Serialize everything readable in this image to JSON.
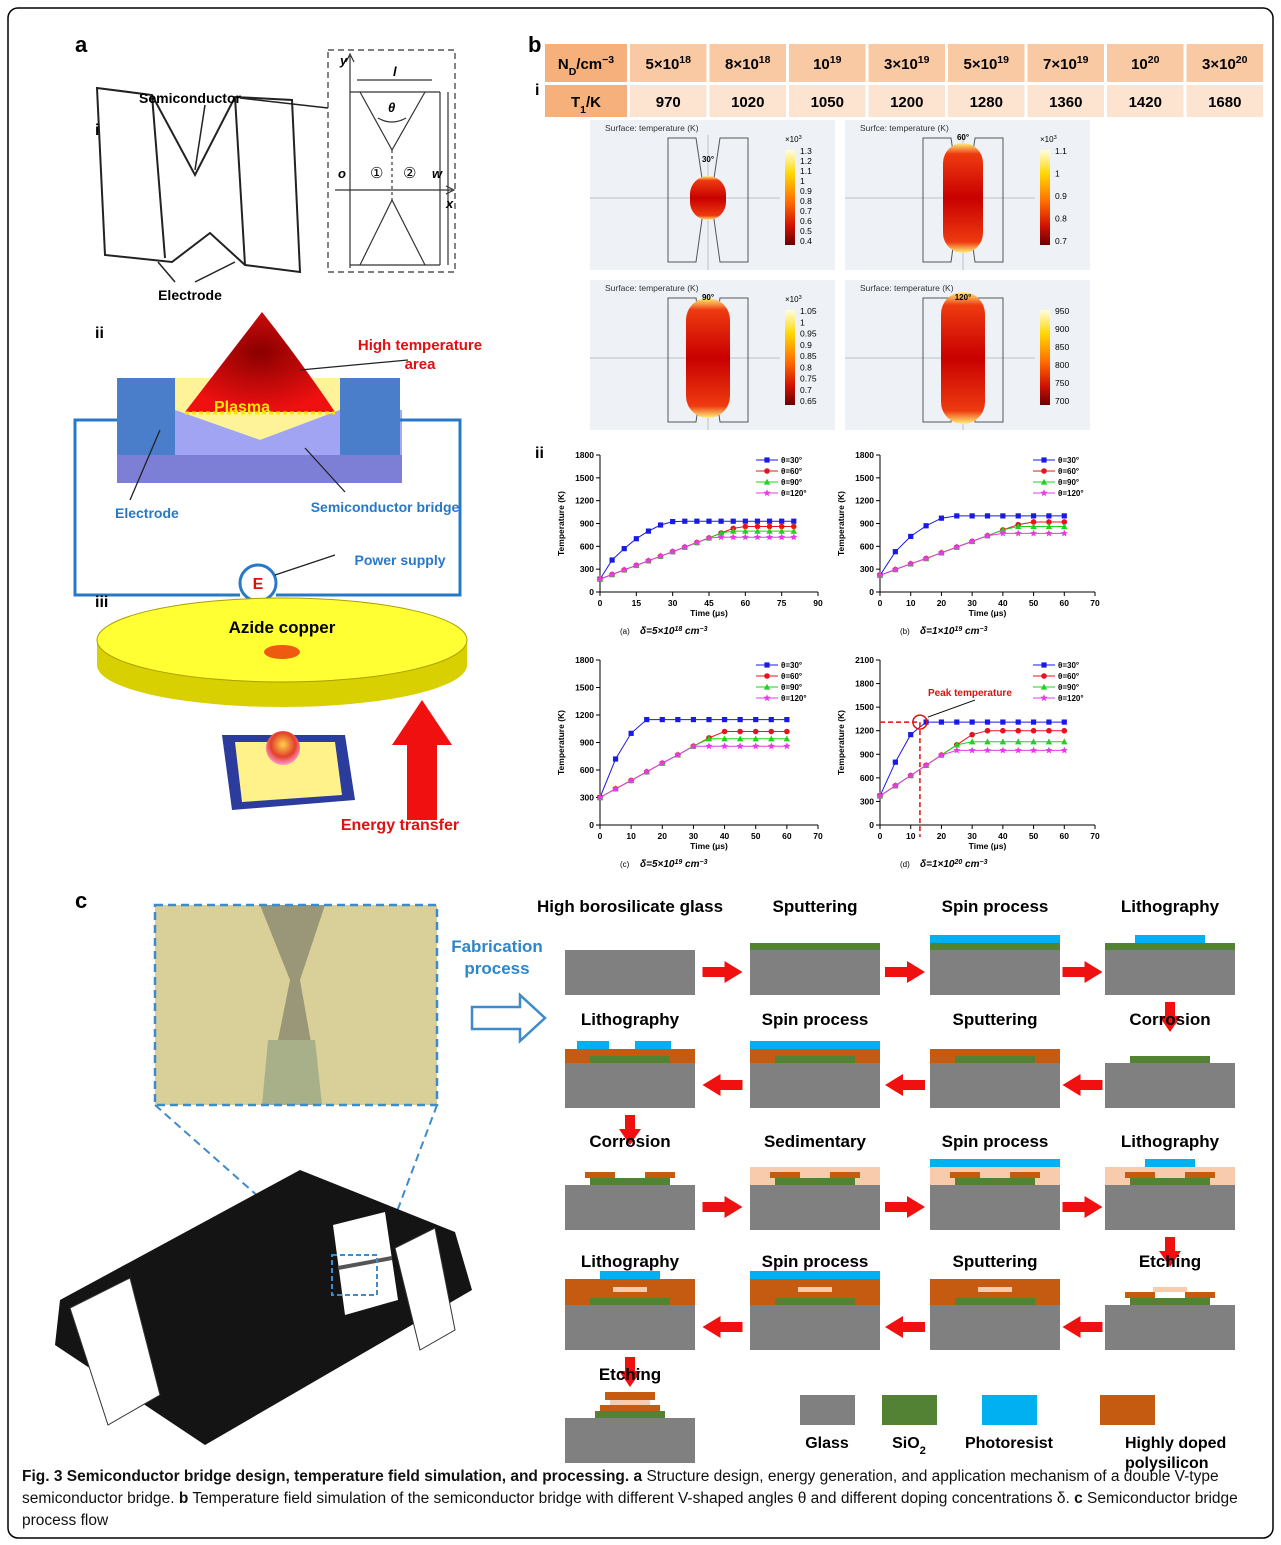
{
  "panel_a": {
    "label": "a",
    "i": {
      "label": "i",
      "semiconductor": "Semiconductor",
      "electrode": "Electrode",
      "axis_y": "y",
      "length": "l",
      "angle": "θ",
      "origin": "o",
      "region1": "①",
      "region2": "②",
      "width": "w",
      "axis_x": "x"
    },
    "ii": {
      "label": "ii",
      "high_temperature": [
        "High temperature",
        "area"
      ],
      "plasma": "Plasma",
      "electrode": "Electrode",
      "bridge": "Semiconductor bridge",
      "source": "E",
      "power": "Power supply"
    },
    "iii": {
      "label": "iii",
      "azide": "Azide copper",
      "energy": "Energy transfer"
    }
  },
  "panel_b": {
    "label": "b",
    "i_label": "i",
    "ii_label": "ii",
    "table": {
      "rows": [
        [
          [
            "N",
            {
              "sub": "D"
            },
            "/cm",
            {
              "sup": "−3"
            }
          ],
          [
            "5×10",
            {
              "sup": "18"
            }
          ],
          [
            "8×10",
            {
              "sup": "18"
            }
          ],
          [
            "10",
            {
              "sup": "19"
            }
          ],
          [
            "3×10",
            {
              "sup": "19"
            }
          ],
          [
            "5×10",
            {
              "sup": "19"
            }
          ],
          [
            "7×10",
            {
              "sup": "19"
            }
          ],
          [
            "10",
            {
              "sup": "20"
            }
          ],
          [
            "3×10",
            {
              "sup": "20"
            }
          ]
        ],
        [
          [
            "T",
            {
              "sub": "1"
            },
            "/K"
          ],
          "970",
          "1020",
          "1050",
          "1200",
          "1280",
          "1360",
          "1420",
          "1680"
        ]
      ]
    },
    "simulations": [
      {
        "title": "Surface: temperature (K)",
        "angle": "30°",
        "scale": [
          "×10",
          {
            "sup": "3"
          }
        ],
        "ticks": [
          "1.3",
          "1.2",
          "1.1",
          "1",
          "0.9",
          "0.8",
          "0.7",
          "0.6",
          "0.5",
          "0.4"
        ]
      },
      {
        "title": "Surfce: temperature (K)",
        "angle": "60°",
        "scale": [
          "×10",
          {
            "sup": "3"
          }
        ],
        "ticks": [
          "1.1",
          "1",
          "0.9",
          "0.8",
          "0.7"
        ]
      },
      {
        "title": "Surface: temperature (K)",
        "angle": "90°",
        "scale": [
          "×10",
          {
            "sup": "3"
          }
        ],
        "ticks": [
          "1.05",
          "1",
          "0.95",
          "0.9",
          "0.85",
          "0.8",
          "0.75",
          "0.7",
          "0.65"
        ]
      },
      {
        "title": "Surface: temperature (K)",
        "angle": "120°",
        "ticks": [
          "950",
          "900",
          "850",
          "800",
          "750",
          "700"
        ]
      }
    ]
  },
  "chart_data": [
    {
      "type": "line",
      "x": [
        0,
        5,
        10,
        15,
        20,
        25,
        30,
        35,
        40,
        45,
        50,
        55,
        60,
        65,
        70,
        75,
        80
      ],
      "series": [
        {
          "name": "θ=30°",
          "color": "#1a1ae6",
          "marker": "square",
          "values": [
            170,
            420,
            570,
            700,
            800,
            880,
            925,
            930,
            930,
            930,
            930,
            930,
            930,
            930,
            930,
            930,
            930
          ]
        },
        {
          "name": "θ=60°",
          "color": "#e6141e",
          "marker": "circle",
          "values": [
            170,
            230,
            290,
            350,
            410,
            470,
            530,
            590,
            650,
            710,
            775,
            835,
            860,
            860,
            860,
            860,
            860
          ]
        },
        {
          "name": "θ=90°",
          "color": "#1ed21e",
          "marker": "triangle",
          "values": [
            170,
            230,
            290,
            350,
            410,
            470,
            530,
            590,
            650,
            710,
            775,
            800,
            800,
            800,
            800,
            800,
            800
          ]
        },
        {
          "name": "θ=120°",
          "color": "#e63ce6",
          "marker": "star",
          "values": [
            170,
            230,
            290,
            350,
            410,
            470,
            530,
            590,
            650,
            710,
            720,
            720,
            720,
            720,
            720,
            720,
            720
          ]
        }
      ],
      "xlim": [
        0,
        90
      ],
      "xticks": [
        0,
        15,
        30,
        45,
        60,
        75,
        90
      ],
      "ylim": [
        0,
        1800
      ],
      "yticks": [
        0,
        300,
        600,
        900,
        1200,
        1500,
        1800
      ],
      "x_label": "Time (μs)",
      "y_label": "Temperature (K)",
      "tag": "(a)",
      "caption": [
        "δ=5×10",
        {
          "sup": "18"
        },
        " cm",
        {
          "sup": "−3"
        }
      ]
    },
    {
      "type": "line",
      "x": [
        0,
        5,
        10,
        15,
        20,
        25,
        30,
        35,
        40,
        45,
        50,
        55,
        60
      ],
      "series": [
        {
          "name": "θ=30°",
          "color": "#1a1ae6",
          "marker": "square",
          "values": [
            220,
            530,
            730,
            870,
            970,
            1000,
            1000,
            1000,
            1000,
            1000,
            1000,
            1000,
            1000
          ]
        },
        {
          "name": "θ=60°",
          "color": "#e6141e",
          "marker": "circle",
          "values": [
            220,
            295,
            370,
            440,
            515,
            590,
            665,
            740,
            815,
            885,
            920,
            920,
            920
          ]
        },
        {
          "name": "θ=90°",
          "color": "#1ed21e",
          "marker": "triangle",
          "values": [
            220,
            295,
            370,
            440,
            515,
            590,
            665,
            740,
            815,
            860,
            860,
            860,
            860
          ]
        },
        {
          "name": "θ=120°",
          "color": "#e63ce6",
          "marker": "star",
          "values": [
            220,
            295,
            370,
            440,
            515,
            590,
            665,
            740,
            770,
            770,
            770,
            770,
            770
          ]
        }
      ],
      "xlim": [
        0,
        70
      ],
      "xticks": [
        0,
        10,
        20,
        30,
        40,
        50,
        60,
        70
      ],
      "ylim": [
        0,
        1800
      ],
      "yticks": [
        0,
        300,
        600,
        900,
        1200,
        1500,
        1800
      ],
      "x_label": "Time (μs)",
      "y_label": "Temperature (K)",
      "tag": "(b)",
      "caption": [
        "δ=1×10",
        {
          "sup": "19"
        },
        " cm",
        {
          "sup": "−3"
        }
      ]
    },
    {
      "type": "line",
      "x": [
        0,
        5,
        10,
        15,
        20,
        25,
        30,
        35,
        40,
        45,
        50,
        55,
        60
      ],
      "series": [
        {
          "name": "θ=30°",
          "color": "#1a1ae6",
          "marker": "square",
          "values": [
            300,
            720,
            1000,
            1150,
            1150,
            1150,
            1150,
            1150,
            1150,
            1150,
            1150,
            1150,
            1150
          ]
        },
        {
          "name": "θ=60°",
          "color": "#e6141e",
          "marker": "circle",
          "values": [
            300,
            395,
            485,
            580,
            675,
            765,
            860,
            950,
            1020,
            1020,
            1020,
            1020,
            1020
          ]
        },
        {
          "name": "θ=90°",
          "color": "#1ed21e",
          "marker": "triangle",
          "values": [
            300,
            395,
            485,
            580,
            675,
            765,
            860,
            940,
            940,
            940,
            940,
            940,
            940
          ]
        },
        {
          "name": "θ=120°",
          "color": "#e63ce6",
          "marker": "star",
          "values": [
            300,
            395,
            485,
            580,
            675,
            765,
            860,
            860,
            860,
            860,
            860,
            860,
            860
          ]
        }
      ],
      "xlim": [
        0,
        70
      ],
      "xticks": [
        0,
        10,
        20,
        30,
        40,
        50,
        60,
        70
      ],
      "ylim": [
        0,
        1800
      ],
      "yticks": [
        0,
        300,
        600,
        900,
        1200,
        1500,
        1800
      ],
      "x_label": "Time (μs)",
      "y_label": "Temperature (K)",
      "tag": "(c)",
      "caption": [
        "δ=5×10",
        {
          "sup": "19"
        },
        " cm",
        {
          "sup": "−3"
        }
      ]
    },
    {
      "type": "line",
      "x": [
        0,
        5,
        10,
        15,
        20,
        25,
        30,
        35,
        40,
        45,
        50,
        55,
        60
      ],
      "series": [
        {
          "name": "θ=30°",
          "color": "#1a1ae6",
          "marker": "square",
          "values": [
            370,
            800,
            1150,
            1310,
            1310,
            1310,
            1310,
            1310,
            1310,
            1310,
            1310,
            1310,
            1310
          ]
        },
        {
          "name": "θ=60°",
          "color": "#e6141e",
          "marker": "circle",
          "values": [
            370,
            500,
            630,
            760,
            890,
            1020,
            1150,
            1200,
            1200,
            1200,
            1200,
            1200,
            1200
          ]
        },
        {
          "name": "θ=90°",
          "color": "#1ed21e",
          "marker": "triangle",
          "values": [
            370,
            500,
            630,
            760,
            890,
            1020,
            1060,
            1060,
            1060,
            1060,
            1060,
            1060,
            1060
          ]
        },
        {
          "name": "θ=120°",
          "color": "#e63ce6",
          "marker": "star",
          "values": [
            370,
            500,
            630,
            760,
            890,
            950,
            950,
            950,
            950,
            950,
            950,
            950,
            950
          ]
        }
      ],
      "xlim": [
        0,
        70
      ],
      "xticks": [
        0,
        10,
        20,
        30,
        40,
        50,
        60,
        70
      ],
      "ylim": [
        0,
        2100
      ],
      "yticks": [
        0,
        300,
        600,
        900,
        1200,
        1500,
        1800,
        2100
      ],
      "x_label": "Time (μs)",
      "y_label": "Temperature (K)",
      "tag": "(d)",
      "caption": [
        "δ=1×10",
        {
          "sup": "20"
        },
        " cm",
        {
          "sup": "−3"
        }
      ],
      "annotation": {
        "text": "Peak temperature",
        "x": 13,
        "y": 1310
      }
    }
  ],
  "panel_c": {
    "label": "c",
    "process": [
      "Fabrication",
      "process"
    ],
    "steps": [
      "High borosilicate glass",
      "Sputtering",
      "Spin process",
      "Lithography",
      "Corrosion",
      "Sputtering",
      "Spin process",
      "Lithography",
      "Corrosion",
      "Sedimentary",
      "Spin process",
      "Lithography",
      "Etching",
      "Sputtering",
      "Spin process",
      "Lithography",
      "Etching"
    ],
    "legend": [
      {
        "label": [
          "Glass"
        ],
        "color": "#808080"
      },
      {
        "label": [
          [
            "SiO",
            {
              "sub": "2"
            }
          ]
        ],
        "color": "#548235"
      },
      {
        "label": [
          "Photoresist"
        ],
        "color": "#00b0f0"
      },
      {
        "label": [
          "Highly doped",
          "polysilicon"
        ],
        "color": "#c55a11"
      }
    ]
  },
  "caption": {
    "title": "Fig. 3 Semiconductor bridge design, temperature field simulation, and processing.",
    "parts": [
      {
        "label": "a",
        "text": "Structure design, energy generation, and application mechanism of a double V-type semiconductor bridge."
      },
      {
        "label": "b",
        "text": "Temperature field simulation of the semiconductor bridge with different V-shaped angles θ and different doping concentrations δ."
      },
      {
        "label": "c",
        "text": "Semiconductor bridge process flow"
      }
    ]
  }
}
